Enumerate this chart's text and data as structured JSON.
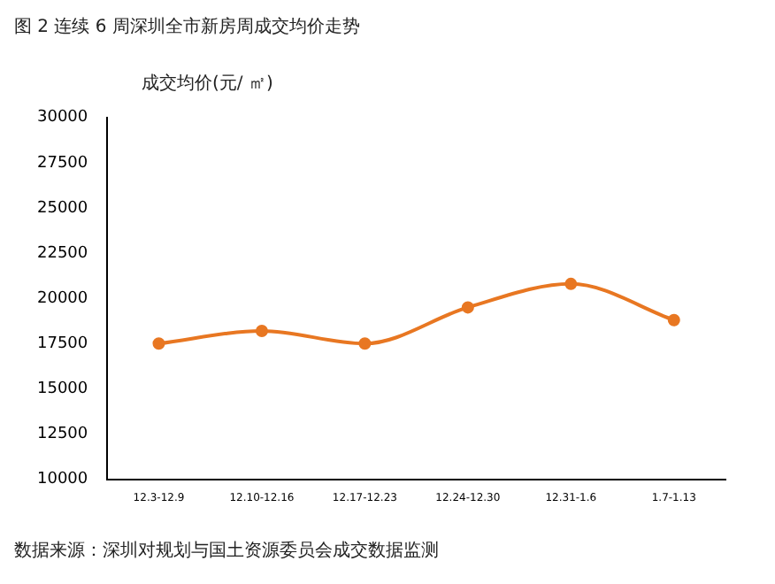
{
  "chart_data": {
    "type": "line",
    "title": "图 2   连续 6 周深圳全市新房周成交均价走势",
    "ylabel": "成交均价(元/ ㎡)",
    "categories": [
      "12.3-12.9",
      "12.10-12.16",
      "12.17-12.23",
      "12.24-12.30",
      "12.31-1.6",
      "1.7-1.13"
    ],
    "series": [
      {
        "color": "#e87722",
        "values": [
          17500,
          18200,
          17500,
          19500,
          20800,
          18800
        ]
      }
    ],
    "ylim": [
      10000,
      30000
    ],
    "yticks": [
      10000,
      12500,
      15000,
      17500,
      20000,
      22500,
      25000,
      27500,
      30000
    ],
    "grid": false,
    "legend": false,
    "marker": "circle",
    "line_style": "solid",
    "annotations": [
      "数据来源：深圳对规划与国土资源委员会成交数据监测"
    ]
  }
}
